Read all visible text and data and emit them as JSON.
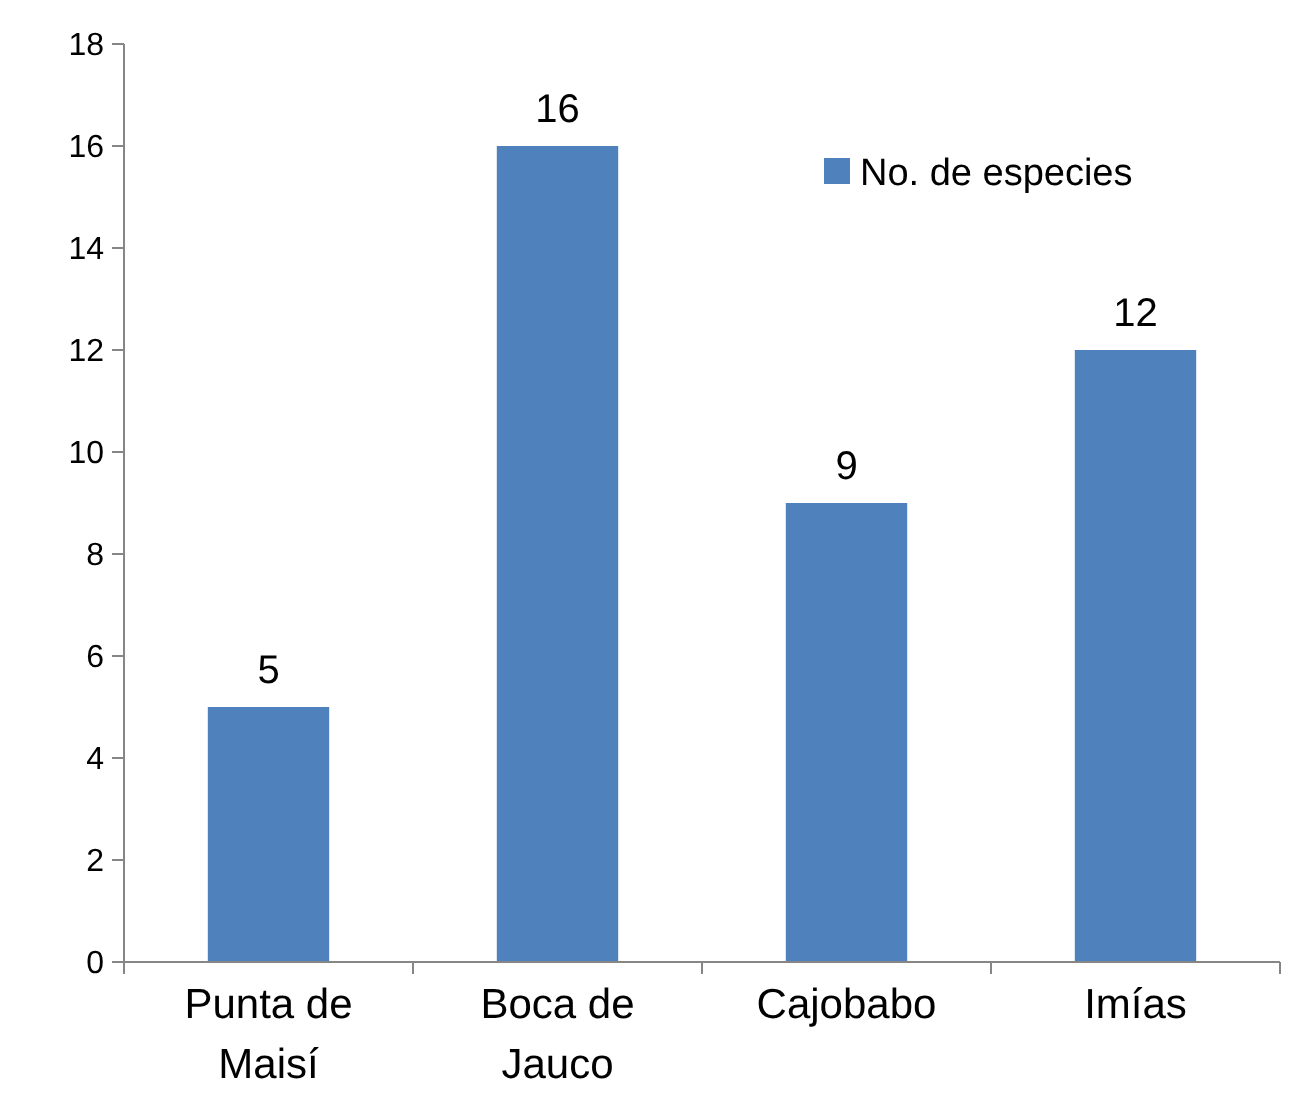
{
  "chart_data": {
    "type": "bar",
    "categories": [
      "Punta de Maisí",
      "Boca de Jauco",
      "Cajobabo",
      "Imías"
    ],
    "series": [
      {
        "name": "No. de especies",
        "color": "#4f81bd",
        "values": [
          5,
          16,
          9,
          12
        ]
      }
    ],
    "ylim": [
      0,
      18
    ],
    "yticks": [
      0,
      2,
      4,
      6,
      8,
      10,
      12,
      14,
      16,
      18
    ],
    "data_labels": true,
    "legend": "top right",
    "grid": false
  }
}
